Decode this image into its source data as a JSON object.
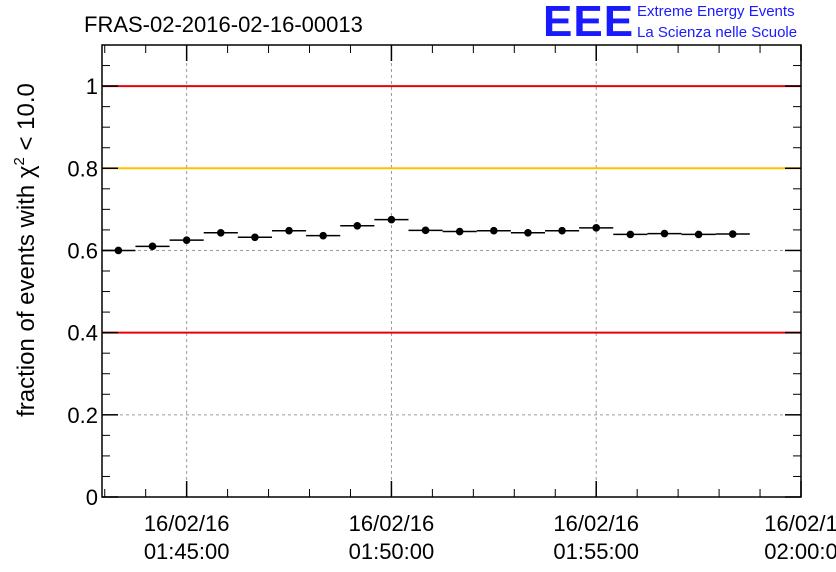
{
  "chart_data": {
    "type": "scatter",
    "title": "FRAS-02-2016-02-16-00013",
    "ylabel_prefix": "fraction of events with ",
    "ylabel_symbol": "χ",
    "ylabel_sup": "2",
    "ylabel_suffix": " < 10.0",
    "ylim": [
      0,
      1.1
    ],
    "yticks": [
      0,
      0.2,
      0.4,
      0.6,
      0.8,
      1
    ],
    "ytick_labels": [
      "0",
      "0.2",
      "0.4",
      "0.6",
      "0.8",
      "1"
    ],
    "xlim": [
      "2016-02-16 01:42:56",
      "2016-02-16 02:00:00"
    ],
    "xticks": [
      {
        "time": "2016-02-16 01:45:00",
        "date_label": "16/02/16",
        "time_label": "01:45:00"
      },
      {
        "time": "2016-02-16 01:50:00",
        "date_label": "16/02/16",
        "time_label": "01:50:00"
      },
      {
        "time": "2016-02-16 01:55:00",
        "date_label": "16/02/16",
        "time_label": "01:55:00"
      },
      {
        "time": "2016-02-16 02:00:00",
        "date_label": "16/02/1",
        "time_label": "02:00:0"
      }
    ],
    "grid": true,
    "reference_lines": [
      {
        "y": 1.0,
        "color": "#e8000b"
      },
      {
        "y": 0.8,
        "color": "#ffc000"
      },
      {
        "y": 0.4,
        "color": "#e8000b"
      }
    ],
    "series": [
      {
        "x": [
          "01:43:20",
          "01:44:10",
          "01:45:00",
          "01:45:50",
          "01:46:40",
          "01:47:30",
          "01:48:20",
          "01:49:10",
          "01:50:00",
          "01:50:50",
          "01:51:40",
          "01:52:30",
          "01:53:20",
          "01:54:10",
          "01:55:00",
          "01:55:50",
          "01:56:40",
          "01:57:30",
          "01:58:20"
        ],
        "y": [
          0.6,
          0.61,
          0.625,
          0.643,
          0.632,
          0.648,
          0.636,
          0.66,
          0.675,
          0.649,
          0.646,
          0.648,
          0.643,
          0.648,
          0.655,
          0.639,
          0.641,
          0.639,
          0.64
        ],
        "bin_width_seconds": 50,
        "color": "#000000"
      }
    ]
  },
  "logo": {
    "mark": "EEE",
    "line1": "Extreme Energy Events",
    "line2": "La Scienza nelle Scuole",
    "color": "#1a1aff"
  }
}
